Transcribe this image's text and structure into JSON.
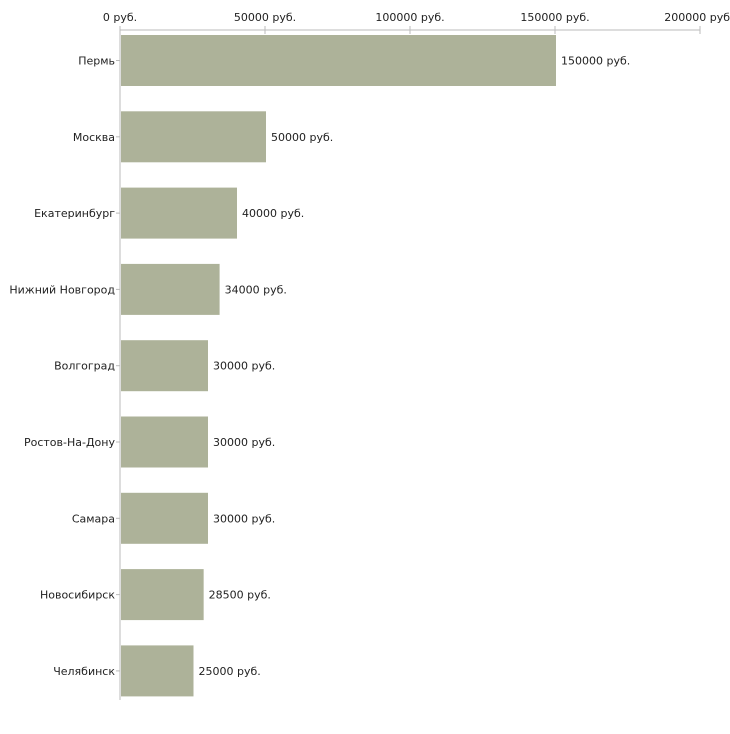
{
  "chart_data": {
    "type": "bar",
    "orientation": "horizontal",
    "title": "",
    "xlabel": "",
    "ylabel": "",
    "categories": [
      "Пермь",
      "Москва",
      "Екатеринбург",
      "Нижний Новгород",
      "Волгоград",
      "Ростов-На-Дону",
      "Самара",
      "Новосибирск",
      "Челябинск"
    ],
    "values": [
      150000,
      50000,
      40000,
      34000,
      30000,
      30000,
      30000,
      28500,
      25000
    ],
    "value_labels": [
      "150000 руб.",
      "50000 руб.",
      "40000 руб.",
      "34000 руб.",
      "30000 руб.",
      "30000 руб.",
      "30000 руб.",
      "28500 руб.",
      "25000 руб."
    ],
    "xlim": [
      0,
      200000
    ],
    "ticks": [
      0,
      50000,
      100000,
      150000,
      200000
    ],
    "tick_labels": [
      "0 руб.",
      "50000 руб.",
      "100000 руб.",
      "150000 руб.",
      "200000 руб"
    ],
    "axis_position": "top",
    "grid": false,
    "legend": "none",
    "colors": {
      "bar": "#adb299",
      "axis": "#bbbbbb",
      "text": "#222222"
    }
  }
}
